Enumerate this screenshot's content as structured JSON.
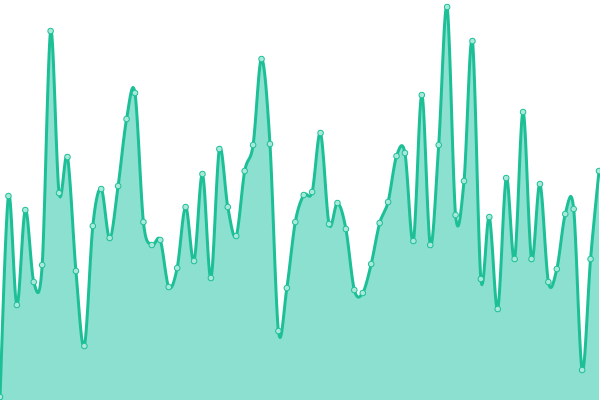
{
  "chart_data": {
    "type": "area",
    "title": "",
    "xlabel": "",
    "ylabel": "",
    "grid": false,
    "legend": "none",
    "ylim": [
      0,
      400
    ],
    "colors": {
      "stroke": "#1dbf97",
      "fill": "#8be0cf",
      "point_fill": "#a8e9d9"
    },
    "series": [
      {
        "values": [
          3,
          204,
          95,
          190,
          118,
          135,
          369,
          207,
          243,
          129,
          54,
          174,
          211,
          162,
          214,
          281,
          307,
          178,
          155,
          160,
          113,
          132,
          193,
          139,
          226,
          122,
          251,
          193,
          164,
          229,
          255,
          341,
          256,
          69,
          112,
          178,
          205,
          208,
          267,
          176,
          197,
          171,
          110,
          107,
          136,
          177,
          198,
          244,
          247,
          159,
          305,
          155,
          255,
          393,
          185,
          219,
          359,
          121,
          183,
          91,
          222,
          141,
          288,
          141,
          216,
          118,
          131,
          186,
          191,
          30,
          141,
          229
        ]
      }
    ]
  }
}
